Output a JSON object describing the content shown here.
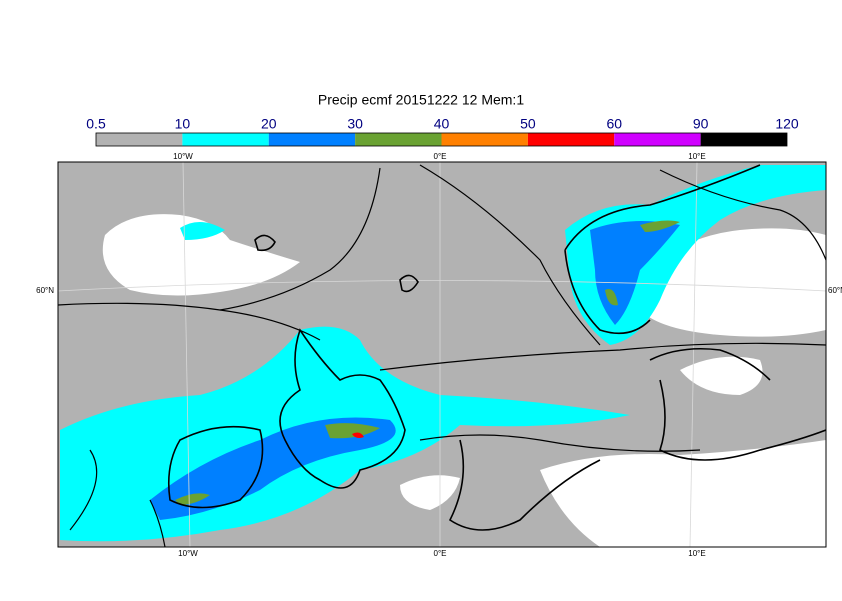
{
  "title": "Precip ecmf 20151222 12 Mem:1",
  "legend": {
    "levels": [
      0.5,
      10,
      20,
      30,
      40,
      50,
      60,
      90,
      120
    ],
    "colors": [
      "#b2b2b2",
      "#00ffff",
      "#0080ff",
      "#6aa232",
      "#ff8000",
      "#ff0000",
      "#d000ff",
      "#000000"
    ]
  },
  "map": {
    "lon_labels": [
      "10°W",
      "0°E",
      "10°E"
    ],
    "lat_labels": [
      "60°N"
    ]
  }
}
